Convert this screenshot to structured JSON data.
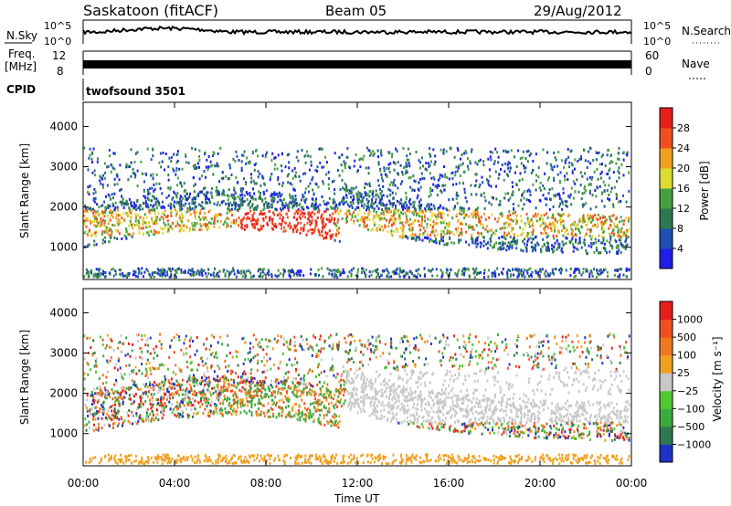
{
  "header": {
    "station": "Saskatoon (fitACF)",
    "beam": "Beam 05",
    "date": "29/Aug/2012"
  },
  "labels": {
    "nsky": "N.Sky",
    "nsearch": "N.Search",
    "freq": "Freq.",
    "freq_unit": "[MHz]",
    "nave": "Nave",
    "cpid": "CPID",
    "cpid_value": "twofsound 3501",
    "xlabel": "Time UT"
  },
  "chart_data": [
    {
      "type": "line",
      "title": "N.Sky / N.Search",
      "left_ticks": [
        "10^5",
        "10^0"
      ],
      "right_ticks": [
        "10^5",
        "10^0"
      ]
    },
    {
      "type": "line",
      "title": "Freq. / Nave",
      "left_ticks": [
        "12",
        "8"
      ],
      "right_ticks": [
        "60",
        "0"
      ]
    },
    {
      "type": "heatmap",
      "ylabel": "Slant Range [km]",
      "ylim": [
        200,
        4600
      ],
      "yticks": [
        1000,
        2000,
        3000,
        4000
      ],
      "colorbar": {
        "label": "Power [dB]",
        "ticks": [
          "4",
          "8",
          "12",
          "16",
          "20",
          "24",
          "28"
        ],
        "colors": [
          "#1e1ee6",
          "#1e50b4",
          "#2d7850",
          "#46a040",
          "#dcdc32",
          "#f0a020",
          "#f05020",
          "#e61e1e"
        ]
      }
    },
    {
      "type": "heatmap",
      "ylabel": "Slant Range [km]",
      "ylim": [
        200,
        4600
      ],
      "yticks": [
        1000,
        2000,
        3000,
        4000
      ],
      "colorbar": {
        "label": "Velocity [m s⁻¹]",
        "ticks": [
          "1000",
          "500",
          "100",
          "25",
          "−25",
          "−100",
          "−500",
          "−1000"
        ],
        "colors": [
          "#1e32c8",
          "#2d7850",
          "#3caa3c",
          "#50c832",
          "#c8c8c8",
          "#f0a020",
          "#f07820",
          "#f05020",
          "#e61e1e"
        ]
      }
    }
  ],
  "x_axis": {
    "label": "Time UT",
    "ticks": [
      "00:00",
      "04:00",
      "08:00",
      "12:00",
      "16:00",
      "20:00",
      "00:00"
    ]
  }
}
